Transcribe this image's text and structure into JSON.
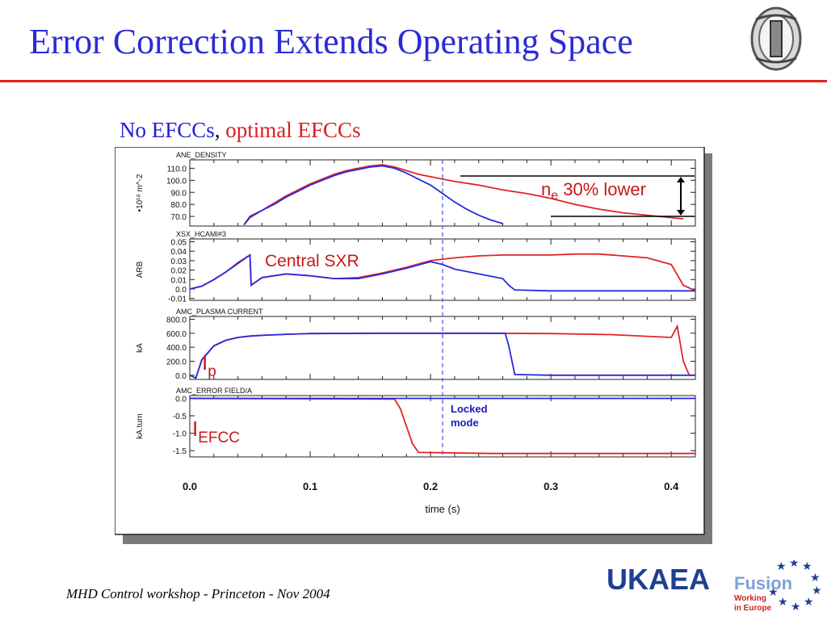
{
  "slide": {
    "title": "Error Correction Extends Operating Space",
    "subtitle_blue": "No EFCCs",
    "subtitle_sep": ", ",
    "subtitle_red": "optimal EFCCs",
    "footer": "MHD Control workshop - Princeton - Nov 2004",
    "org_logo": "UKAEA",
    "fusion_logo": "Fusion",
    "fusion_tagline": [
      "Working",
      "in Europe"
    ]
  },
  "chart_data": {
    "type": "line",
    "xlabel": "time (s)",
    "x_ticks": [
      "0.0",
      "0.1",
      "0.2",
      "0.3",
      "0.4"
    ],
    "xlim": [
      0.0,
      0.42
    ],
    "colors": {
      "no_efcc": "#2a2ae0",
      "optimal_efcc": "#e02424",
      "locked_line": "#5060e8"
    },
    "locked_mode": {
      "x": 0.21,
      "label": [
        "Locked",
        "mode"
      ]
    },
    "panels": [
      {
        "name": "ANE_DENSITY",
        "ylabel": "•10¹⁸ m^-2",
        "y_ticks": [
          "110.0",
          "100.0",
          "90.0",
          "80.0",
          "70.0"
        ],
        "ylim": [
          62,
          117
        ],
        "annotation_main": "n",
        "annotation_sub": "e",
        "annotation_rest": " 30% lower",
        "series": [
          {
            "key": "no_efcc",
            "x": [
              0.045,
              0.05,
              0.06,
              0.07,
              0.08,
              0.09,
              0.1,
              0.11,
              0.12,
              0.13,
              0.14,
              0.15,
              0.16,
              0.17,
              0.18,
              0.19,
              0.2,
              0.21,
              0.22,
              0.23,
              0.24,
              0.25,
              0.26
            ],
            "y": [
              63,
              70,
              75,
              80,
              86,
              91,
              96,
              100,
              104,
              107,
              109,
              111,
              112,
              110,
              106,
              101,
              96,
              89,
              82,
              76,
              71,
              67,
              64
            ]
          },
          {
            "key": "optimal_efcc",
            "x": [
              0.045,
              0.05,
              0.06,
              0.07,
              0.08,
              0.09,
              0.1,
              0.11,
              0.12,
              0.13,
              0.14,
              0.15,
              0.16,
              0.17,
              0.18,
              0.19,
              0.2,
              0.21,
              0.22,
              0.24,
              0.26,
              0.28,
              0.3,
              0.32,
              0.34,
              0.36,
              0.38,
              0.4,
              0.41
            ],
            "y": [
              63,
              69,
              75,
              81,
              87,
              92,
              97,
              101,
              105,
              108,
              110,
              112,
              113,
              111,
              108,
              105,
              103,
              101,
              99,
              96,
              92,
              89,
              85,
              80,
              76,
              73,
              71,
              69,
              68
            ]
          }
        ]
      },
      {
        "name": "XSX_HCAMI#3",
        "ylabel": "ARB",
        "y_ticks": [
          "0.05",
          "0.04",
          "0.03",
          "0.02",
          "0.01",
          "0.0",
          "-0.01"
        ],
        "ylim": [
          -0.012,
          0.053
        ],
        "annotation": "Central SXR",
        "series": [
          {
            "key": "no_efcc",
            "x": [
              0.0,
              0.01,
              0.02,
              0.03,
              0.04,
              0.05,
              0.051,
              0.06,
              0.08,
              0.1,
              0.12,
              0.14,
              0.16,
              0.18,
              0.2,
              0.21,
              0.22,
              0.24,
              0.26,
              0.265,
              0.27,
              0.3,
              0.35,
              0.4,
              0.42
            ],
            "y": [
              0.0,
              0.003,
              0.01,
              0.018,
              0.027,
              0.036,
              0.004,
              0.012,
              0.016,
              0.014,
              0.011,
              0.011,
              0.016,
              0.022,
              0.029,
              0.026,
              0.021,
              0.016,
              0.011,
              0.004,
              -0.001,
              -0.002,
              -0.002,
              -0.002,
              -0.002
            ]
          },
          {
            "key": "optimal_efcc",
            "x": [
              0.0,
              0.01,
              0.02,
              0.03,
              0.04,
              0.05,
              0.051,
              0.06,
              0.08,
              0.1,
              0.12,
              0.14,
              0.16,
              0.18,
              0.2,
              0.22,
              0.24,
              0.26,
              0.28,
              0.3,
              0.32,
              0.34,
              0.36,
              0.38,
              0.4,
              0.41,
              0.42
            ],
            "y": [
              0.0,
              0.003,
              0.01,
              0.018,
              0.028,
              0.036,
              0.004,
              0.012,
              0.016,
              0.014,
              0.011,
              0.012,
              0.017,
              0.023,
              0.03,
              0.033,
              0.035,
              0.036,
              0.036,
              0.036,
              0.037,
              0.037,
              0.035,
              0.033,
              0.026,
              0.004,
              -0.002
            ]
          }
        ]
      },
      {
        "name": "AMC_PLASMA CURRENT",
        "ylabel": "kA",
        "y_ticks": [
          "800.0",
          "600.0",
          "400.0",
          "200.0",
          "0.0"
        ],
        "ylim": [
          -60,
          840
        ],
        "annotation_main": "I",
        "annotation_sub": "p",
        "series": [
          {
            "key": "no_efcc",
            "x": [
              0.0,
              0.005,
              0.01,
              0.02,
              0.03,
              0.04,
              0.05,
              0.06,
              0.08,
              0.1,
              0.15,
              0.2,
              0.25,
              0.262,
              0.265,
              0.27,
              0.3,
              0.35,
              0.4,
              0.42
            ],
            "y": [
              0,
              -40,
              220,
              420,
              500,
              540,
              560,
              570,
              585,
              595,
              600,
              600,
              600,
              600,
              420,
              10,
              0,
              0,
              0,
              0
            ]
          },
          {
            "key": "optimal_efcc",
            "x": [
              0.0,
              0.005,
              0.01,
              0.02,
              0.03,
              0.04,
              0.05,
              0.06,
              0.08,
              0.1,
              0.15,
              0.2,
              0.25,
              0.3,
              0.35,
              0.4,
              0.405,
              0.41,
              0.415,
              0.42
            ],
            "y": [
              0,
              -40,
              220,
              420,
              500,
              540,
              560,
              570,
              585,
              595,
              600,
              600,
              600,
              595,
              580,
              540,
              700,
              200,
              0,
              0
            ]
          }
        ]
      },
      {
        "name": "AMC_ERROR FIELD/A",
        "ylabel": "kA.turn",
        "y_ticks": [
          "0.0",
          "-0.5",
          "-1.0",
          "-1.5"
        ],
        "ylim": [
          -1.68,
          0.08
        ],
        "annotation_main": "I",
        "annotation_sub": "EFCC",
        "series": [
          {
            "key": "no_efcc",
            "x": [
              0.0,
              0.42
            ],
            "y": [
              0.0,
              0.0
            ]
          },
          {
            "key": "optimal_efcc",
            "x": [
              0.0,
              0.17,
              0.175,
              0.185,
              0.19,
              0.25,
              0.3,
              0.35,
              0.4,
              0.42
            ],
            "y": [
              0.0,
              -0.02,
              -0.3,
              -1.3,
              -1.55,
              -1.58,
              -1.58,
              -1.58,
              -1.58,
              -1.58
            ]
          }
        ]
      }
    ]
  }
}
